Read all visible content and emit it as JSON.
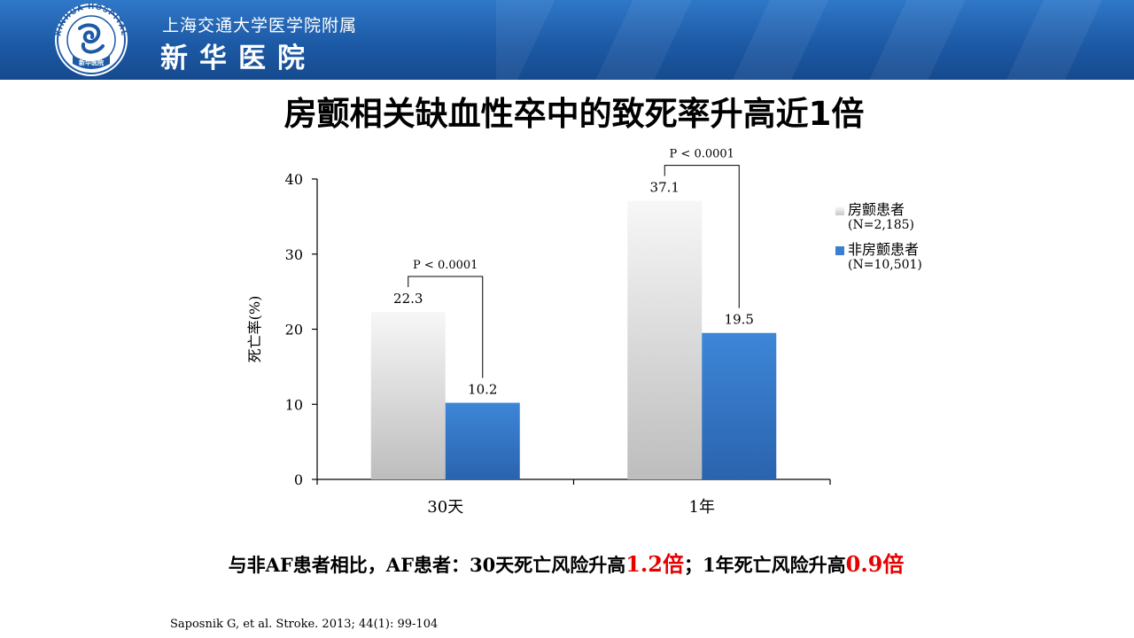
{
  "header": {
    "logo_text": "XINHUA HOSPITAL",
    "logo_inner_text": "新华医院",
    "affiliation": "上海交通大学医学院附属",
    "hospital_name": "新华医院"
  },
  "title": "房颤相关缺血性卒中的致死率升高近1倍",
  "chart_data": {
    "type": "bar",
    "categories": [
      "30天",
      "1年"
    ],
    "series": [
      {
        "name": "房颤患者",
        "legend_detail": "(N=2,185)",
        "values": [
          22.3,
          37.1
        ],
        "color": "#d4d4d4"
      },
      {
        "name": "非房颤患者",
        "legend_detail": "(N=10,501)",
        "values": [
          10.2,
          19.5
        ],
        "color": "#3a7fcf"
      }
    ],
    "ylabel": "死亡率(%)",
    "xlabel": "",
    "ylim": [
      0,
      40
    ],
    "yticks": [
      0,
      10,
      20,
      30,
      40
    ],
    "annotations": [
      "P < 0.0001",
      "P < 0.0001"
    ],
    "legend_position": "right",
    "grid": false
  },
  "summary": {
    "p1": "与非",
    "af1": "AF",
    "p2": "患者相比，",
    "af2": "AF",
    "p3": "患者：",
    "n30": "30",
    "p4": "天死亡风险升高",
    "v1": "1.2倍",
    "p5": "；",
    "n1": "1",
    "p6": "年死亡风险升高",
    "v2": "0.9倍"
  },
  "citation": "Saposnik G, et al. Stroke. 2013; 44(1): 99-104"
}
